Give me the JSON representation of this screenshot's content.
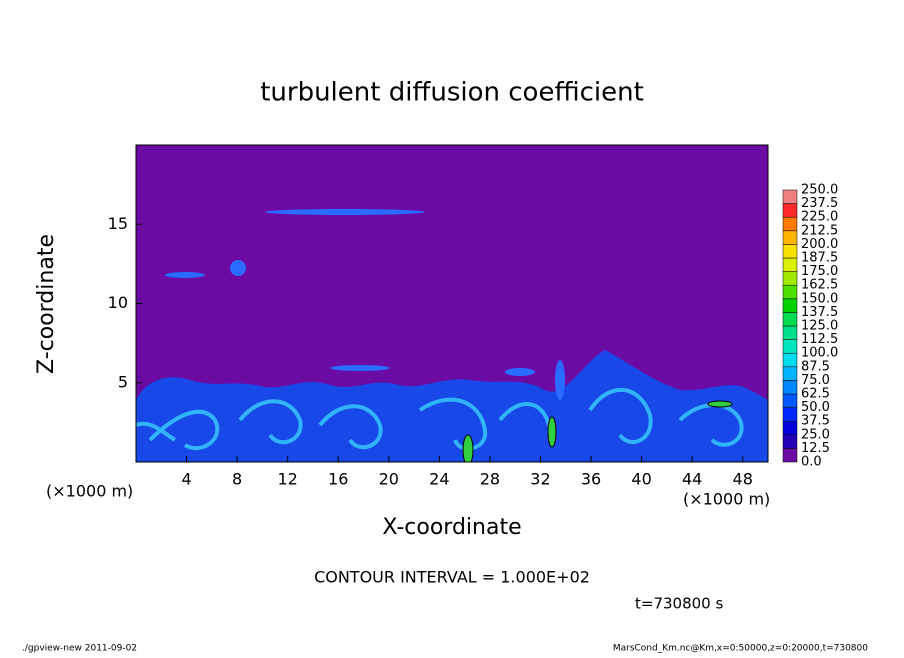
{
  "chart_data": {
    "type": "contour",
    "title": "turbulent diffusion coefficient",
    "xlabel": "X-coordinate",
    "ylabel": "Z-coordinate",
    "axis_unit": "(×1000 m)",
    "xlim": [
      0,
      50
    ],
    "ylim": [
      0,
      20
    ],
    "xticks": [
      4,
      8,
      12,
      16,
      20,
      24,
      28,
      32,
      36,
      40,
      44,
      48
    ],
    "yticks": [
      5,
      10,
      15
    ],
    "background_color": "#6c0aa4",
    "colorbar": {
      "levels": [
        {
          "value": 0,
          "label": "0.0"
        },
        12.5,
        {
          "value": 25,
          "label": "25.0"
        },
        37.5,
        {
          "value": 50,
          "label": "50.0"
        },
        62.5,
        {
          "value": 75,
          "label": "75.0"
        },
        87.5,
        {
          "value": 100,
          "label": "100.0"
        },
        112.5,
        {
          "value": 125,
          "label": "125.0"
        },
        137.5,
        {
          "value": 150,
          "label": "150.0"
        },
        162.5,
        {
          "value": 175,
          "label": "175.0"
        },
        187.5,
        {
          "value": 200,
          "label": "200.0"
        },
        212.5,
        {
          "value": 225,
          "label": "225.0"
        },
        237.5,
        {
          "value": 250,
          "label": "250.0"
        }
      ],
      "colors": [
        "#6c0aa4",
        "#2400b4",
        "#0000dc",
        "#0028ff",
        "#0058ff",
        "#0088ff",
        "#00b4ff",
        "#00dcf0",
        "#00e6c0",
        "#00e08c",
        "#00dc50",
        "#00d200",
        "#50e000",
        "#a0e800",
        "#dcf000",
        "#f8e000",
        "#ffb400",
        "#ff7800",
        "#ff2828",
        "#f08080"
      ]
    },
    "contour_interval": "CONTOUR INTERVAL = 1.000E+02",
    "time_label": "t=730800 s",
    "footer_left": "./gpview-new  2011-09-02",
    "footer_right": "MarsCond_Km.nc@Km,x=0:50000,z=0:20000,t=730800"
  }
}
